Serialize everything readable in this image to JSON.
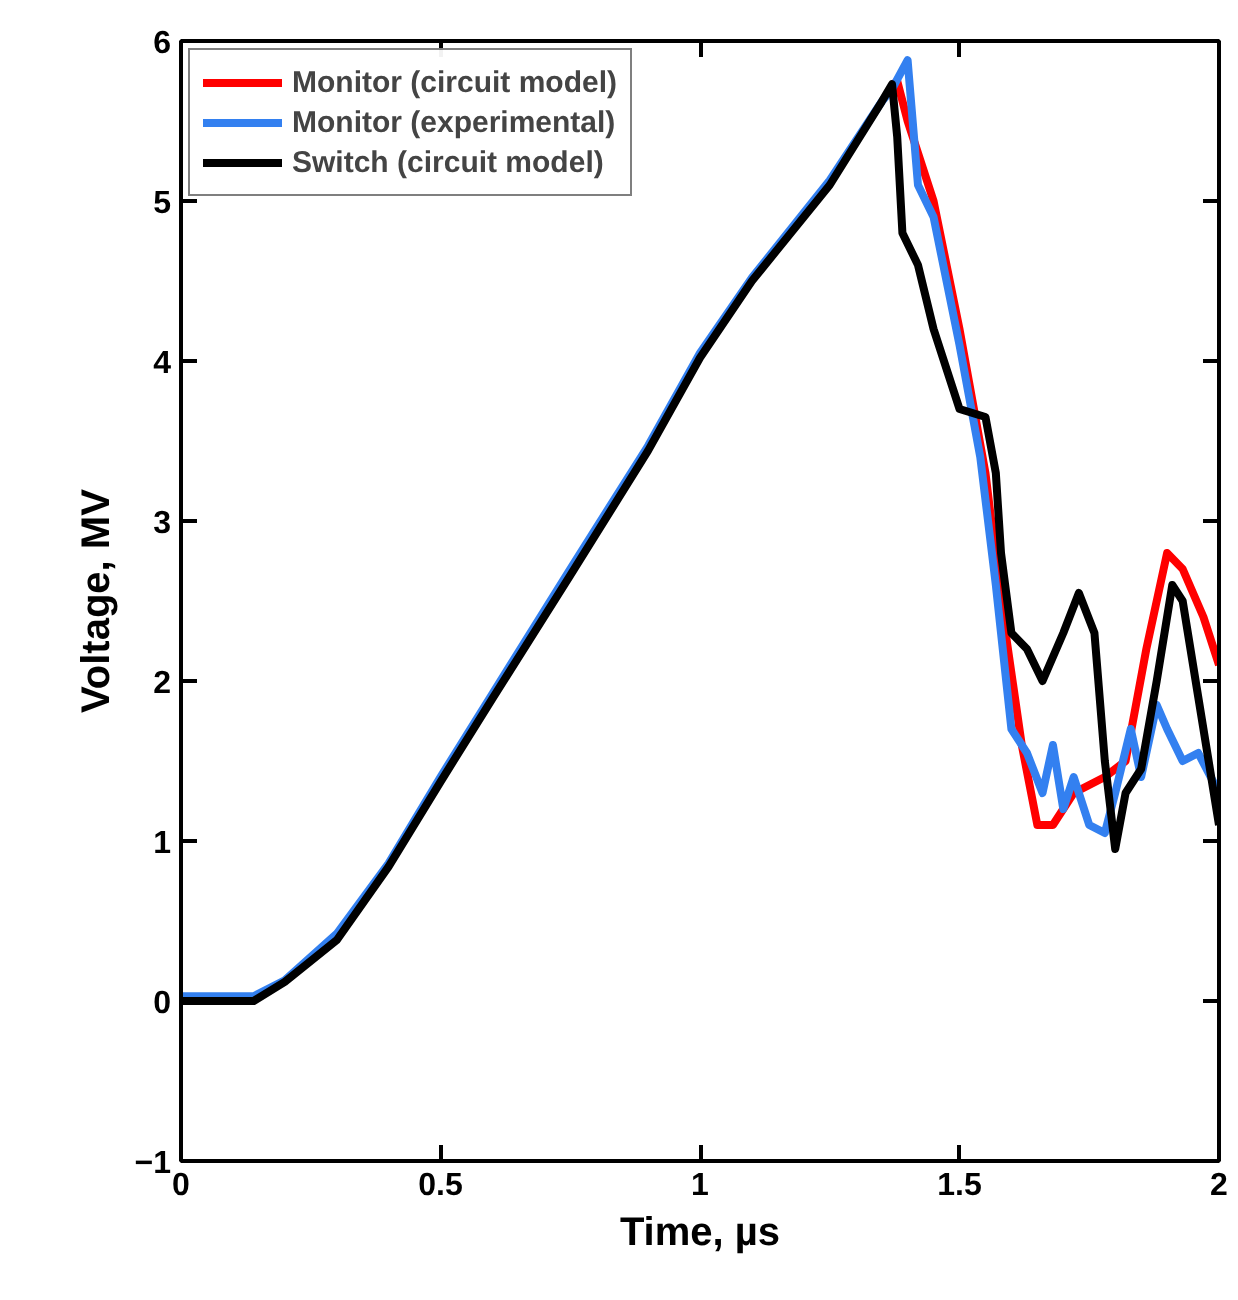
{
  "chart_data": {
    "type": "line",
    "xlabel": "Time, µs",
    "ylabel": "Voltage, MV",
    "xlim": [
      0,
      2
    ],
    "ylim": [
      -1,
      6
    ],
    "xticks": [
      0,
      0.5,
      1,
      1.5,
      2
    ],
    "yticks": [
      -1,
      0,
      1,
      2,
      3,
      4,
      5,
      6
    ],
    "grid": false,
    "legend": "top left",
    "marker": "none",
    "line_style": "solid",
    "series": [
      {
        "name": "Monitor (circuit model)",
        "color": "#ff0000",
        "x": [
          1.37,
          1.38,
          1.4,
          1.45,
          1.5,
          1.55,
          1.58,
          1.62,
          1.65,
          1.68,
          1.72,
          1.78,
          1.82,
          1.86,
          1.9,
          1.93,
          1.97,
          2.0
        ],
        "values": [
          5.72,
          5.75,
          5.5,
          5.0,
          4.2,
          3.3,
          2.5,
          1.6,
          1.1,
          1.1,
          1.3,
          1.4,
          1.5,
          2.2,
          2.8,
          2.7,
          2.4,
          2.1
        ]
      },
      {
        "name": "Monitor (experimental)",
        "color": "#3380f0",
        "x": [
          0,
          0.14,
          0.2,
          0.3,
          0.4,
          0.5,
          0.6,
          0.75,
          0.9,
          1.0,
          1.1,
          1.25,
          1.35,
          1.37,
          1.4,
          1.42,
          1.45,
          1.5,
          1.54,
          1.57,
          1.6,
          1.63,
          1.66,
          1.68,
          1.7,
          1.72,
          1.75,
          1.78,
          1.8,
          1.83,
          1.85,
          1.88,
          1.9,
          1.93,
          1.96,
          2.0
        ],
        "values": [
          0.03,
          0.03,
          0.13,
          0.42,
          0.86,
          1.4,
          1.92,
          2.7,
          3.47,
          4.05,
          4.52,
          5.13,
          5.62,
          5.7,
          5.88,
          5.1,
          4.9,
          4.1,
          3.4,
          2.6,
          1.7,
          1.55,
          1.3,
          1.6,
          1.2,
          1.4,
          1.1,
          1.05,
          1.3,
          1.7,
          1.4,
          1.85,
          1.7,
          1.5,
          1.55,
          1.3
        ]
      },
      {
        "name": "Switch (circuit model)",
        "color": "#000000",
        "x": [
          0,
          0.14,
          0.2,
          0.3,
          0.4,
          0.5,
          0.6,
          0.75,
          0.9,
          1.0,
          1.1,
          1.25,
          1.35,
          1.37,
          1.38,
          1.39,
          1.42,
          1.45,
          1.48,
          1.5,
          1.55,
          1.57,
          1.58,
          1.6,
          1.63,
          1.66,
          1.7,
          1.73,
          1.76,
          1.78,
          1.8,
          1.82,
          1.85,
          1.88,
          1.91,
          1.93,
          1.96,
          1.98,
          2.0
        ],
        "values": [
          0,
          0,
          0.12,
          0.38,
          0.84,
          1.37,
          1.89,
          2.66,
          3.44,
          4.02,
          4.5,
          5.1,
          5.62,
          5.73,
          5.4,
          4.8,
          4.6,
          4.2,
          3.9,
          3.7,
          3.65,
          3.3,
          2.8,
          2.3,
          2.2,
          2.0,
          2.3,
          2.55,
          2.3,
          1.5,
          0.95,
          1.3,
          1.45,
          2.0,
          2.6,
          2.5,
          1.9,
          1.5,
          1.1
        ]
      }
    ]
  }
}
